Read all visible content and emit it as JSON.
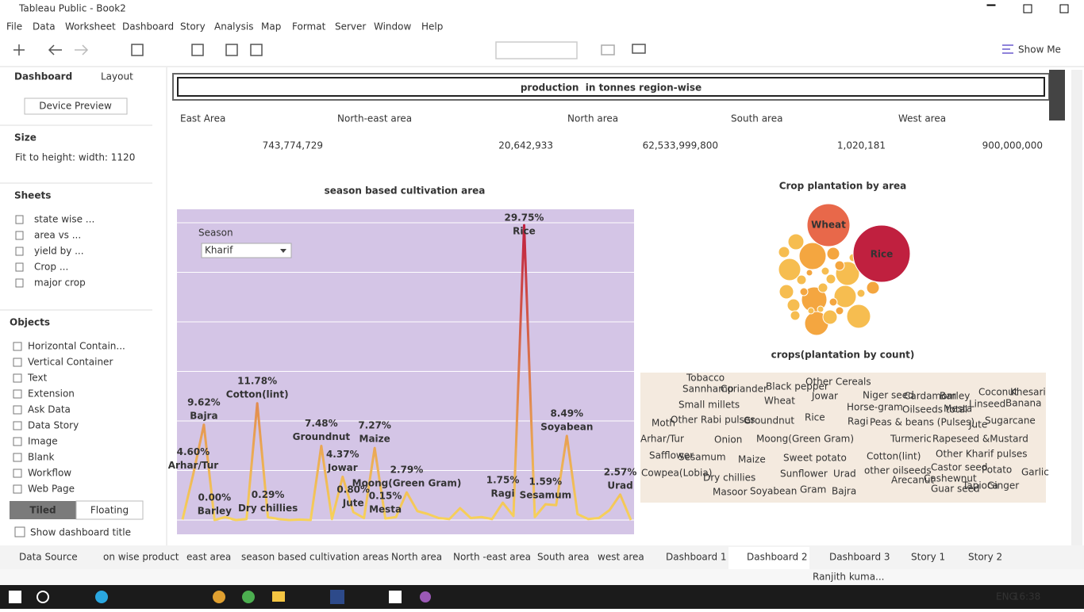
{
  "window": {
    "title": "Tableau Public - Book2"
  },
  "menu": [
    "File",
    "Data",
    "Worksheet",
    "Dashboard",
    "Story",
    "Analysis",
    "Map",
    "Format",
    "Server",
    "Window",
    "Help"
  ],
  "toolbar": {
    "show_me": "Show Me"
  },
  "sidebar": {
    "tabs": [
      "Dashboard",
      "Layout"
    ],
    "device_preview": "Device Preview",
    "size": {
      "title": "Size",
      "value": "Fit to height: width: 1120"
    },
    "sheets": {
      "title": "Sheets",
      "items": [
        "state wise ...",
        "area vs ...",
        "yield by ...",
        "Crop ...",
        "major crop"
      ]
    },
    "objects": {
      "title": "Objects",
      "items": [
        "Horizontal Contain...",
        "Vertical Container",
        "Text",
        "Extension",
        "Ask Data",
        "Data Story",
        "Image",
        "Blank",
        "Workflow",
        "Web Page"
      ]
    },
    "layout_modes": [
      "Tiled",
      "Floating"
    ],
    "show_title": "Show dashboard title"
  },
  "dashboard": {
    "title": "production  in tonnes region-wise",
    "regions": [
      {
        "name": "East Area",
        "value": "743,774,729"
      },
      {
        "name": "North-east area",
        "value": "20,642,933"
      },
      {
        "name": "North area",
        "value": "62,533,999,800"
      },
      {
        "name": "South area",
        "value": "1,020,181"
      },
      {
        "name": "West area",
        "value": "900,000,000"
      }
    ],
    "line_chart": {
      "type": "line",
      "title": "season based cultivation area",
      "filter": {
        "label": "Season",
        "value": "Kharif"
      },
      "categories": [
        null,
        "Arhar/Tur",
        "Bajra",
        "Barley",
        null,
        null,
        null,
        "Cotton(lint)",
        "Dry chillies",
        null,
        null,
        null,
        null,
        "Groundnut",
        null,
        "Jowar",
        "Jute",
        null,
        "Maize",
        "Mesta",
        null,
        "Moong(Green Gram)",
        null,
        null,
        null,
        null,
        null,
        null,
        null,
        null,
        "Ragi",
        null,
        "Rice",
        null,
        "Sesamum",
        null,
        "Soyabean",
        null,
        null,
        null,
        null,
        "Urad",
        null
      ],
      "values": [
        0.05,
        4.6,
        9.62,
        0.0,
        0.3,
        0.0,
        0.1,
        11.78,
        0.29,
        0.1,
        0.0,
        0.05,
        0.0,
        7.48,
        0.1,
        4.37,
        0.8,
        0.2,
        7.27,
        0.15,
        0.3,
        2.79,
        0.9,
        0.6,
        0.2,
        0.1,
        1.2,
        0.2,
        0.3,
        0.1,
        1.75,
        0.4,
        29.75,
        0.3,
        1.59,
        1.5,
        8.49,
        0.6,
        0.1,
        0.2,
        1.0,
        2.57,
        0.0
      ],
      "value_labels": [
        null,
        "4.60%",
        "9.62%",
        "0.00%",
        null,
        null,
        null,
        "11.78%",
        "0.29%",
        null,
        null,
        null,
        null,
        "7.48%",
        null,
        "4.37%",
        "0.80%",
        null,
        "7.27%",
        "0.15%",
        null,
        "2.79%",
        null,
        null,
        null,
        null,
        null,
        null,
        null,
        null,
        "1.75%",
        null,
        "29.75%",
        null,
        "1.59%",
        null,
        "8.49%",
        null,
        null,
        null,
        null,
        "2.57%",
        null
      ],
      "ylim": [
        -1.44,
        31.36
      ],
      "yticks": [
        0,
        5,
        10,
        15,
        20,
        25,
        30
      ],
      "grid": true,
      "color_low": "#f7d25a",
      "color_high": "#c0203f"
    },
    "bubble_chart": {
      "title": "Crop plantation by area",
      "labels": [
        "Wheat",
        "Rice"
      ]
    },
    "word_cloud": {
      "title": "crops(plantation by count)",
      "words": [
        "Tobacco",
        "Sannhamp",
        "Coriander",
        "Black pepper",
        "Other Cereals",
        "Wheat",
        "Jowar",
        "Niger seed",
        "Cardamom",
        "Barley",
        "Coconut",
        "Khesari",
        "Small millets",
        "Horse-gram",
        "Oilseeds total",
        "Mesta",
        "Linseed",
        "Banana",
        "Moth",
        "Other Rabi pulses",
        "Groundnut",
        "Rice",
        "Ragi",
        "Peas & beans (Pulses)",
        "Jute",
        "Sugarcane",
        "Arhar/Tur",
        "Onion",
        "Moong(Green Gram)",
        "Turmeric",
        "Rapeseed &Mustard",
        "Safflower",
        "Sesamum",
        "Maize",
        "Sweet potato",
        "Cotton(lint)",
        "Other Kharif pulses",
        "Cowpea(Lobia)",
        "Dry chillies",
        "Sunflower",
        "Urad",
        "other oilseeds",
        "Castor seed",
        "Potato",
        "Garlic",
        "Arecanut",
        "Cashewnut",
        "Masoor",
        "Soyabean",
        "Gram",
        "Bajra",
        "Guar seed",
        "Tapioca",
        "Ginger"
      ]
    }
  },
  "tabs": [
    "Data Source",
    "on wise product",
    "east area",
    "season based cultivation areas",
    "North area",
    "North -east area",
    "South area",
    "west area",
    "Dashboard 1",
    "Dashboard 2",
    "Dashboard 3",
    "Story 1",
    "Story 2"
  ],
  "status": {
    "user": "Ranjith kuma..."
  },
  "taskbar": {
    "language": "ENG",
    "time": "16:38"
  }
}
